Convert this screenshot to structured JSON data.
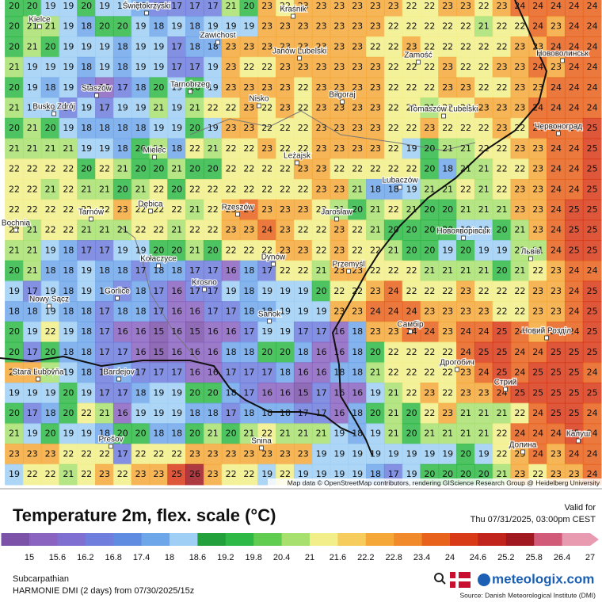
{
  "map": {
    "attribution": "Map data © OpenStreetMap contributors, rendering GIScience Research Group @ Heidelberg University",
    "cities": [
      "Kielce",
      "Świętokrzyski",
      "Kraśnik",
      "Zawichost",
      "Janów Lubelski",
      "Zamość",
      "Нововолинськ",
      "Staszów",
      "Tarnobrzeg",
      "Nisko",
      "Biłgoraj",
      "Busko Zdrój",
      "Tomaszów Lubelski",
      "Червоноград",
      "Mielec",
      "Leżajsk",
      "Lubaczów",
      "Tarnów",
      "Dębica",
      "Rzeszów",
      "Jarosław",
      "Новояворівськ",
      "Bochnia",
      "Kołaczyce",
      "Dynów",
      "Przemyśl",
      "Львів",
      "Krosno",
      "Gorlice",
      "Nowy Sącz",
      "Sanok",
      "Самбір",
      "Новий Розділ",
      "Дрогобич",
      "Stara Ľubovňa",
      "Bardejov",
      "Стрий",
      "Prešov",
      "Snina",
      "Калуш",
      "Долина"
    ],
    "grid": [
      [
        20,
        20,
        19,
        19,
        20,
        19,
        19,
        18,
        17,
        17,
        17,
        17,
        21,
        20,
        23,
        22,
        23,
        23,
        23,
        23,
        23,
        23,
        22,
        22,
        23,
        23,
        22,
        23,
        24,
        24,
        24,
        24,
        24
      ],
      [
        20,
        21,
        21,
        19,
        18,
        20,
        20,
        19,
        18,
        19,
        18,
        19,
        19,
        19,
        23,
        23,
        23,
        23,
        23,
        23,
        23,
        22,
        22,
        22,
        22,
        22,
        21,
        22,
        22,
        24,
        23,
        24,
        24
      ],
      [
        20,
        21,
        20,
        19,
        19,
        19,
        18,
        19,
        19,
        17,
        18,
        18,
        23,
        23,
        23,
        23,
        23,
        23,
        23,
        23,
        22,
        22,
        23,
        22,
        22,
        22,
        22,
        22,
        23,
        23,
        24,
        24,
        24
      ],
      [
        21,
        19,
        19,
        19,
        18,
        19,
        18,
        19,
        19,
        17,
        17,
        19,
        23,
        22,
        22,
        23,
        23,
        23,
        23,
        23,
        23,
        22,
        22,
        22,
        23,
        22,
        22,
        23,
        23,
        24,
        23,
        24,
        24
      ],
      [
        20,
        19,
        18,
        19,
        17,
        16,
        17,
        18,
        20,
        19,
        20,
        19,
        23,
        23,
        23,
        23,
        22,
        23,
        23,
        23,
        23,
        22,
        22,
        22,
        23,
        23,
        22,
        22,
        23,
        23,
        24,
        24,
        24
      ],
      [
        21,
        19,
        19,
        17,
        19,
        17,
        19,
        19,
        21,
        19,
        21,
        22,
        22,
        23,
        22,
        23,
        22,
        23,
        23,
        23,
        23,
        22,
        22,
        21,
        22,
        22,
        23,
        23,
        23,
        24,
        24,
        24,
        24
      ],
      [
        20,
        21,
        20,
        19,
        18,
        18,
        18,
        18,
        19,
        19,
        20,
        19,
        23,
        23,
        22,
        22,
        22,
        23,
        23,
        23,
        23,
        22,
        22,
        23,
        22,
        22,
        22,
        23,
        22,
        24,
        24,
        24,
        25
      ],
      [
        21,
        21,
        21,
        21,
        19,
        19,
        18,
        20,
        21,
        18,
        22,
        21,
        22,
        22,
        23,
        22,
        22,
        23,
        23,
        23,
        23,
        22,
        19,
        20,
        21,
        21,
        22,
        22,
        23,
        23,
        24,
        24,
        25
      ],
      [
        22,
        22,
        22,
        22,
        20,
        22,
        21,
        20,
        20,
        21,
        20,
        20,
        22,
        22,
        22,
        22,
        23,
        23,
        22,
        22,
        22,
        22,
        22,
        20,
        18,
        21,
        21,
        22,
        22,
        23,
        24,
        24,
        25
      ],
      [
        22,
        22,
        21,
        22,
        21,
        21,
        20,
        21,
        22,
        20,
        22,
        22,
        22,
        22,
        22,
        22,
        22,
        23,
        23,
        21,
        18,
        18,
        19,
        21,
        21,
        22,
        21,
        22,
        23,
        23,
        24,
        24,
        25
      ],
      [
        22,
        22,
        22,
        22,
        22,
        22,
        23,
        22,
        22,
        22,
        21,
        22,
        23,
        24,
        23,
        23,
        23,
        22,
        21,
        20,
        21,
        22,
        21,
        20,
        20,
        21,
        21,
        21,
        23,
        23,
        24,
        25,
        25
      ],
      [
        22,
        21,
        22,
        22,
        21,
        21,
        21,
        22,
        22,
        21,
        22,
        22,
        23,
        23,
        24,
        23,
        22,
        22,
        23,
        22,
        21,
        20,
        20,
        20,
        20,
        19,
        19,
        20,
        21,
        23,
        24,
        25,
        25
      ],
      [
        21,
        21,
        19,
        18,
        17,
        17,
        19,
        19,
        20,
        20,
        21,
        20,
        22,
        22,
        22,
        23,
        23,
        22,
        23,
        22,
        22,
        21,
        20,
        20,
        19,
        20,
        19,
        19,
        21,
        21,
        24,
        25,
        25
      ],
      [
        20,
        21,
        18,
        18,
        19,
        18,
        18,
        17,
        18,
        18,
        17,
        17,
        16,
        18,
        17,
        22,
        22,
        21,
        23,
        23,
        22,
        22,
        22,
        21,
        21,
        21,
        21,
        20,
        21,
        22,
        23,
        24,
        24
      ],
      [
        19,
        17,
        19,
        18,
        19,
        18,
        17,
        18,
        17,
        16,
        17,
        17,
        19,
        18,
        19,
        19,
        19,
        20,
        22,
        22,
        23,
        24,
        22,
        22,
        22,
        23,
        22,
        22,
        22,
        23,
        23,
        24,
        25
      ],
      [
        18,
        18,
        19,
        18,
        18,
        17,
        18,
        18,
        17,
        16,
        16,
        17,
        17,
        18,
        18,
        19,
        19,
        19,
        23,
        23,
        24,
        24,
        24,
        23,
        23,
        23,
        23,
        22,
        22,
        23,
        23,
        24,
        25
      ],
      [
        20,
        19,
        22,
        19,
        18,
        17,
        16,
        16,
        15,
        16,
        15,
        16,
        16,
        17,
        19,
        19,
        17,
        17,
        16,
        18,
        23,
        23,
        24,
        24,
        23,
        24,
        24,
        25,
        24,
        23,
        24,
        24,
        25
      ],
      [
        20,
        17,
        20,
        18,
        18,
        17,
        17,
        16,
        15,
        16,
        16,
        16,
        18,
        18,
        20,
        20,
        18,
        16,
        16,
        18,
        20,
        22,
        22,
        22,
        22,
        24,
        25,
        25,
        24,
        24,
        25,
        25,
        25
      ],
      [
        23,
        23,
        21,
        19,
        18,
        17,
        18,
        17,
        17,
        17,
        16,
        16,
        17,
        17,
        17,
        18,
        16,
        16,
        18,
        18,
        21,
        22,
        22,
        22,
        22,
        23,
        24,
        25,
        24,
        25,
        25,
        25,
        24
      ],
      [
        19,
        19,
        19,
        20,
        19,
        17,
        17,
        18,
        19,
        19,
        20,
        20,
        18,
        17,
        16,
        16,
        15,
        17,
        16,
        16,
        19,
        21,
        22,
        23,
        22,
        23,
        23,
        24,
        25,
        25,
        25,
        25,
        25
      ],
      [
        20,
        17,
        18,
        20,
        22,
        21,
        16,
        19,
        19,
        19,
        18,
        18,
        17,
        18,
        18,
        18,
        17,
        17,
        16,
        18,
        20,
        21,
        20,
        22,
        23,
        21,
        21,
        21,
        22,
        24,
        25,
        25,
        24
      ],
      [
        21,
        19,
        20,
        19,
        19,
        18,
        20,
        20,
        18,
        18,
        20,
        21,
        20,
        21,
        22,
        21,
        21,
        21,
        19,
        18,
        19,
        21,
        20,
        21,
        21,
        21,
        21,
        22,
        24,
        24,
        24,
        25,
        24
      ],
      [
        23,
        23,
        23,
        22,
        22,
        22,
        17,
        22,
        22,
        22,
        23,
        23,
        23,
        23,
        23,
        23,
        23,
        19,
        19,
        19,
        19,
        19,
        19,
        19,
        19,
        20,
        19,
        22,
        23,
        24,
        23,
        24,
        24
      ],
      [
        19,
        22,
        22,
        21,
        22,
        23,
        22,
        23,
        23,
        25,
        26,
        23,
        22,
        22,
        19,
        22,
        19,
        19,
        19,
        19,
        18,
        17,
        19,
        20,
        20,
        20,
        20,
        21,
        23,
        22,
        23,
        23,
        24
      ]
    ]
  },
  "legend": {
    "title": "Temperature 2m, flex. scale (°C)",
    "ticks": [
      15,
      15.6,
      16.2,
      16.8,
      17.4,
      18,
      18.6,
      19.2,
      19.8,
      20.4,
      21,
      21.6,
      22.2,
      22.8,
      23.4,
      24,
      24.6,
      25.2,
      25.8,
      26.4,
      27
    ],
    "colors": [
      "#7b52a8",
      "#8a63c0",
      "#7f6fd0",
      "#6f7ddc",
      "#5f8be0",
      "#6ea6ea",
      "#9fcff5",
      "#22a03c",
      "#2eb845",
      "#60cc50",
      "#a8e070",
      "#f2ee8a",
      "#f6cc5c",
      "#f5a838",
      "#f08a2a",
      "#e8621c",
      "#d83a18",
      "#c0241c",
      "#a01820",
      "#d05a78",
      "#e89ab0"
    ]
  },
  "valid": {
    "label": "Valid for",
    "time": "Thu 07/31/2025, 03:00pm CEST"
  },
  "footer": {
    "region": "Subcarpathian",
    "model": "HARMONIE DMI (2 days) from 07/30/2025/15z",
    "brand": "meteologix.com",
    "source": "Source: Danish Meteorological Institute (DMI)"
  }
}
